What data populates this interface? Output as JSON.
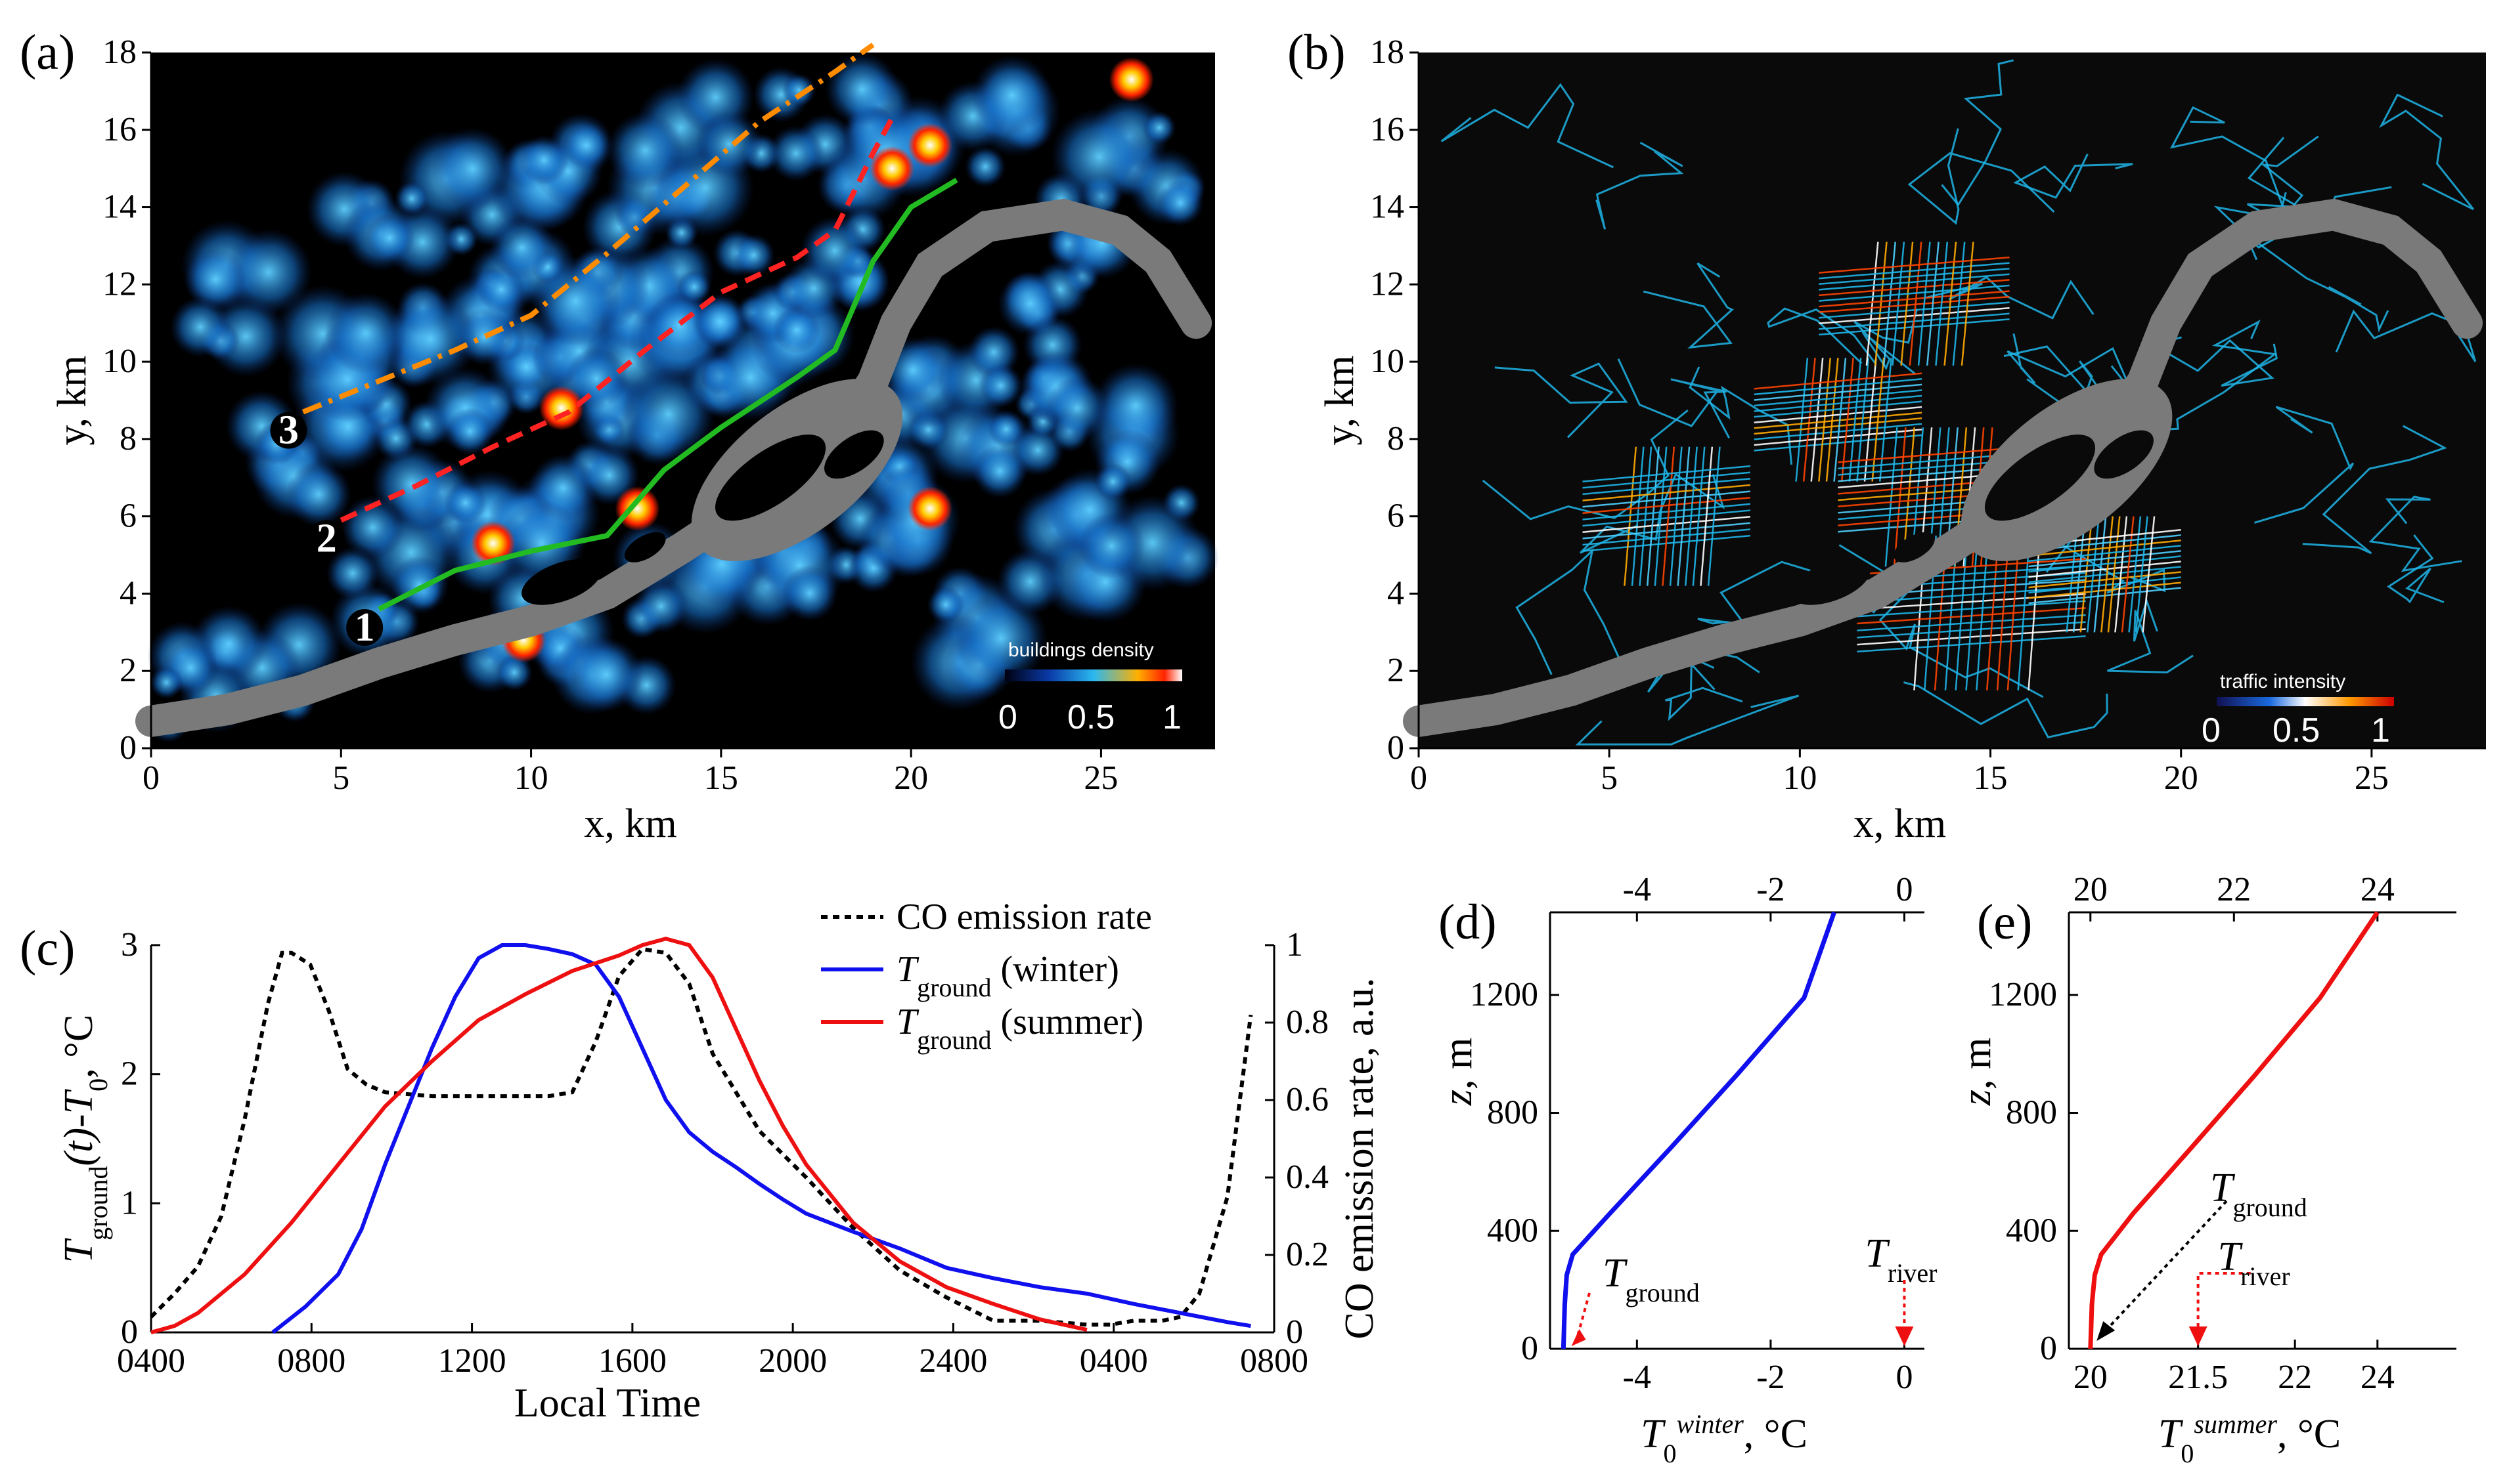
{
  "colors": {
    "map_bg": "#000000",
    "river": "#7a7a7a",
    "density_low": "#0a3a7a",
    "density_mid": "#1fa0e6",
    "density_high": "#ff2a00",
    "roads": "#1fb5e8",
    "line1": "#22bb22",
    "line2": "#ff2222",
    "line3": "#ff8c00",
    "co": "#000000",
    "winter": "#1010ee",
    "summer": "#ee1010"
  },
  "panels": {
    "a": {
      "label": "(a)",
      "colorbar_title": "buildings density",
      "colorbar_ticks": [
        "0",
        "0.5",
        "1"
      ],
      "route_labels": [
        "1",
        "2",
        "3"
      ]
    },
    "b": {
      "label": "(b)",
      "colorbar_title": "traffic intensity",
      "colorbar_ticks": [
        "0",
        "0.5",
        "1"
      ]
    },
    "c": {
      "label": "(c)"
    },
    "d": {
      "label": "(d)",
      "t_ground": "T",
      "t_ground_sub": "ground",
      "t_river": "T",
      "t_river_sub": "river"
    },
    "e": {
      "label": "(e)",
      "t_ground": "T",
      "t_ground_sub": "ground",
      "t_river": "T",
      "t_river_sub": "river"
    }
  },
  "chart_data": [
    {
      "type": "heatmap",
      "panel": "a",
      "xlabel": "x, km",
      "ylabel": "y, km",
      "xlim": [
        0,
        28
      ],
      "ylim": [
        0,
        18
      ],
      "xticks": [
        "0",
        "5",
        "10",
        "15",
        "20",
        "25"
      ],
      "yticks": [
        "0",
        "2",
        "4",
        "6",
        "8",
        "10",
        "12",
        "14",
        "16",
        "18"
      ],
      "routes": [
        {
          "name": "1",
          "x": [
            6,
            8,
            10,
            12,
            13.5,
            15,
            17,
            18,
            19,
            20,
            21.2
          ],
          "y": [
            3.6,
            4.6,
            5.1,
            5.5,
            7.2,
            8.3,
            9.6,
            10.3,
            12.6,
            14.0,
            14.7
          ]
        },
        {
          "name": "2",
          "x": [
            5,
            7,
            9,
            11,
            13,
            15,
            17,
            18,
            19,
            19.5
          ],
          "y": [
            5.9,
            6.8,
            7.8,
            8.7,
            10.3,
            11.8,
            12.7,
            13.4,
            15.4,
            16.3
          ]
        },
        {
          "name": "3",
          "x": [
            4,
            6,
            8,
            10,
            12,
            14,
            16,
            18,
            19
          ],
          "y": [
            8.7,
            9.5,
            10.3,
            11.2,
            12.8,
            14.5,
            16.2,
            17.5,
            18.2
          ]
        }
      ]
    },
    {
      "type": "heatmap",
      "panel": "b",
      "xlabel": "x, km",
      "ylabel": "y, km",
      "xlim": [
        0,
        28
      ],
      "ylim": [
        0,
        18
      ],
      "xticks": [
        "0",
        "5",
        "10",
        "15",
        "20",
        "25"
      ],
      "yticks": [
        "0",
        "2",
        "4",
        "6",
        "8",
        "10",
        "12",
        "14",
        "16",
        "18"
      ]
    },
    {
      "type": "line",
      "panel": "c",
      "xlabel": "Local Time",
      "ylabel_parts": {
        "a": "T",
        "a_sub": "ground",
        "b": "(t)-T",
        "b_sub": "0",
        "c": ", °C"
      },
      "y2label": "CO emission rate, a.u.",
      "xlim": [
        0,
        24
      ],
      "ylim": [
        0,
        3
      ],
      "y2lim": [
        0,
        1
      ],
      "xticks": [
        "0400",
        "0800",
        "1200",
        "1600",
        "2000",
        "2400",
        "0400",
        "0800"
      ],
      "yticks": [
        "0",
        "1",
        "2",
        "3"
      ],
      "y2ticks": [
        "0",
        "0.2",
        "0.4",
        "0.6",
        "0.8",
        "1"
      ],
      "series": [
        {
          "name": "CO emission rate",
          "axis": "y2",
          "style": "dotted",
          "x": [
            0,
            0.5,
            1,
            1.5,
            2,
            2.5,
            2.8,
            3,
            3.4,
            3.8,
            4.2,
            4.6,
            5,
            6,
            7,
            8,
            8.5,
            9,
            9.5,
            10,
            10.5,
            11,
            11.5,
            12,
            13,
            14,
            15,
            16,
            17,
            18,
            19,
            20,
            20.5,
            21,
            21.3,
            21.6,
            22,
            22.4,
            23,
            23.5
          ],
          "y": [
            0.04,
            0.1,
            0.17,
            0.3,
            0.55,
            0.85,
            0.98,
            0.98,
            0.95,
            0.83,
            0.68,
            0.64,
            0.62,
            0.61,
            0.61,
            0.61,
            0.61,
            0.62,
            0.75,
            0.92,
            0.99,
            0.98,
            0.9,
            0.72,
            0.52,
            0.4,
            0.27,
            0.16,
            0.09,
            0.03,
            0.03,
            0.02,
            0.02,
            0.03,
            0.03,
            0.03,
            0.04,
            0.1,
            0.35,
            0.82
          ]
        },
        {
          "name": "T",
          "name_sub": "ground",
          "name_suffix": "(winter)",
          "axis": "y",
          "style": "solid",
          "x": [
            2.6,
            3.3,
            4,
            4.5,
            5,
            5.5,
            6,
            6.5,
            7,
            7.5,
            8,
            8.5,
            9,
            9.5,
            10,
            10.5,
            11,
            11.5,
            12,
            12.5,
            13,
            13.5,
            14,
            15,
            16,
            17,
            18,
            19,
            20,
            21,
            22,
            23,
            23.5
          ],
          "y": [
            0,
            0.2,
            0.45,
            0.8,
            1.3,
            1.75,
            2.2,
            2.6,
            2.9,
            3.0,
            3.0,
            2.97,
            2.93,
            2.85,
            2.6,
            2.2,
            1.8,
            1.55,
            1.4,
            1.28,
            1.15,
            1.03,
            0.92,
            0.78,
            0.65,
            0.5,
            0.42,
            0.35,
            0.3,
            0.22,
            0.15,
            0.08,
            0.05
          ]
        },
        {
          "name": "T",
          "name_sub": "ground",
          "name_suffix": "(summer)",
          "axis": "y",
          "style": "solid",
          "x": [
            0,
            0.5,
            1,
            2,
            3,
            4,
            5,
            6,
            7,
            8,
            9,
            10,
            10.5,
            11,
            11.5,
            12,
            12.5,
            13,
            13.5,
            14,
            15,
            16,
            17,
            18,
            19,
            20
          ],
          "y": [
            0,
            0.05,
            0.15,
            0.45,
            0.85,
            1.3,
            1.75,
            2.1,
            2.42,
            2.62,
            2.8,
            2.92,
            3.0,
            3.05,
            3.0,
            2.75,
            2.35,
            1.95,
            1.6,
            1.3,
            0.85,
            0.55,
            0.35,
            0.22,
            0.1,
            0.02
          ]
        }
      ]
    },
    {
      "type": "line",
      "panel": "d",
      "xlabel_parts": {
        "a": "T",
        "a_sub": "0",
        "a_sup": "winter",
        "b": ", °C"
      },
      "ylabel_parts": {
        "a": "z",
        "b": ", m"
      },
      "xlim": [
        -5.3,
        0.3
      ],
      "ylim": [
        0,
        1480
      ],
      "xticks": [
        "-4",
        "-2",
        "0"
      ],
      "yticks": [
        "0",
        "400",
        "800",
        "1200"
      ],
      "series": [
        {
          "x": [
            -5.1,
            -5.08,
            -5.05,
            -4.96,
            -4.4,
            -3.5,
            -2.5,
            -1.5,
            -1.05
          ],
          "y": [
            0,
            150,
            250,
            320,
            460,
            680,
            930,
            1190,
            1480
          ]
        }
      ],
      "annotations": [
        {
          "name": "T ground",
          "x": -5.0,
          "y": 0
        },
        {
          "name": "T river",
          "x": 0,
          "y": 0
        }
      ]
    },
    {
      "type": "line",
      "panel": "e",
      "xlabel_parts": {
        "a": "T",
        "a_sub": "0",
        "a_sup": "summer",
        "b": ", °C"
      },
      "ylabel_parts": {
        "a": "z",
        "b": ", m"
      },
      "xlim": [
        19.7,
        25.1
      ],
      "ylim": [
        0,
        1480
      ],
      "xticks_bottom": [
        "20",
        "21.5",
        "22",
        "24"
      ],
      "xticks_top": [
        "20",
        "22",
        "24"
      ],
      "yticks": [
        "0",
        "400",
        "800",
        "1200"
      ],
      "series": [
        {
          "x": [
            20.0,
            20.02,
            20.06,
            20.15,
            20.6,
            21.4,
            22.3,
            23.2,
            24.0
          ],
          "y": [
            0,
            150,
            250,
            320,
            460,
            680,
            930,
            1190,
            1480
          ]
        }
      ],
      "annotations": [
        {
          "name": "T ground",
          "x": 20.05,
          "y": 0
        },
        {
          "name": "T river",
          "x": 21.5,
          "y": 0
        }
      ]
    }
  ]
}
